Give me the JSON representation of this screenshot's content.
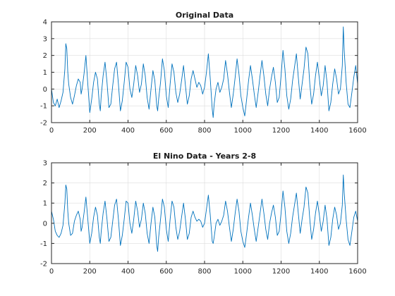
{
  "chart_data": [
    {
      "type": "line",
      "title": "Original Data",
      "xlabel": "",
      "ylabel": "",
      "xlim": [
        0,
        1600
      ],
      "ylim": [
        -2,
        4
      ],
      "xticks": [
        0,
        200,
        400,
        600,
        800,
        1000,
        1200,
        1400,
        1600
      ],
      "yticks": [
        -2,
        -1,
        0,
        1,
        2,
        3,
        4
      ],
      "grid": true,
      "color": "#0072bd",
      "series": [
        {
          "x": [
            0,
            10,
            20,
            30,
            40,
            50,
            60,
            70,
            75,
            80,
            85,
            90,
            100,
            110,
            120,
            130,
            140,
            150,
            155,
            160,
            170,
            180,
            190,
            200,
            210,
            220,
            230,
            240,
            250,
            255,
            260,
            270,
            280,
            290,
            300,
            310,
            320,
            330,
            340,
            350,
            360,
            370,
            380,
            390,
            400,
            410,
            420,
            430,
            440,
            450,
            460,
            470,
            480,
            490,
            500,
            510,
            520,
            530,
            540,
            550,
            555,
            560,
            570,
            580,
            590,
            600,
            610,
            620,
            630,
            640,
            650,
            660,
            670,
            680,
            690,
            700,
            710,
            720,
            730,
            740,
            750,
            760,
            770,
            780,
            790,
            800,
            810,
            820,
            830,
            840,
            845,
            850,
            860,
            870,
            880,
            890,
            900,
            910,
            920,
            930,
            940,
            950,
            960,
            970,
            980,
            990,
            1000,
            1010,
            1020,
            1030,
            1040,
            1050,
            1060,
            1070,
            1080,
            1090,
            1100,
            1110,
            1120,
            1130,
            1140,
            1150,
            1160,
            1170,
            1180,
            1190,
            1200,
            1210,
            1220,
            1230,
            1240,
            1250,
            1260,
            1270,
            1280,
            1290,
            1300,
            1310,
            1320,
            1330,
            1340,
            1350,
            1360,
            1370,
            1380,
            1390,
            1400,
            1410,
            1420,
            1430,
            1440,
            1450,
            1460,
            1470,
            1480,
            1490,
            1500,
            1510,
            1520,
            1525,
            1530,
            1540,
            1550,
            1560,
            1570,
            1580,
            1590,
            1600
          ],
          "y": [
            0.0,
            -0.8,
            -1.0,
            -0.6,
            -1.1,
            -0.7,
            -0.2,
            1.2,
            2.7,
            2.4,
            1.0,
            0.3,
            -0.5,
            -0.9,
            -0.4,
            0.2,
            0.6,
            0.4,
            -0.3,
            0.0,
            0.9,
            2.0,
            0.3,
            -1.4,
            -0.6,
            0.4,
            1.0,
            0.6,
            -0.9,
            -1.3,
            -0.4,
            0.8,
            1.6,
            0.4,
            -1.1,
            -0.9,
            0.2,
            1.2,
            1.6,
            0.3,
            -1.3,
            -0.7,
            0.4,
            1.6,
            1.3,
            0.0,
            -0.5,
            0.3,
            1.4,
            0.8,
            -0.2,
            0.3,
            1.5,
            0.8,
            -0.5,
            -1.2,
            0.0,
            1.1,
            0.5,
            -1.0,
            -1.3,
            -0.6,
            0.4,
            1.8,
            1.1,
            -0.4,
            -1.1,
            0.3,
            1.5,
            1.0,
            -0.2,
            -0.8,
            -0.3,
            0.5,
            1.4,
            0.2,
            -0.9,
            -0.4,
            0.6,
            1.1,
            0.6,
            0.1,
            0.4,
            0.2,
            -0.3,
            0.1,
            1.0,
            2.1,
            0.6,
            -1.2,
            -1.7,
            -0.9,
            0.0,
            0.4,
            -0.2,
            0.1,
            0.6,
            1.7,
            0.9,
            -0.2,
            -1.1,
            -0.3,
            0.7,
            1.8,
            0.9,
            -0.4,
            -1.1,
            -1.6,
            -0.6,
            0.5,
            1.4,
            0.6,
            -0.3,
            -1.1,
            -0.2,
            0.8,
            1.7,
            0.8,
            -0.3,
            -1.0,
            0.0,
            0.7,
            1.3,
            0.4,
            -0.8,
            -0.5,
            0.8,
            2.3,
            1.2,
            -0.4,
            -1.2,
            -0.6,
            0.5,
            1.3,
            2.1,
            0.7,
            -0.6,
            0.3,
            1.2,
            2.5,
            2.1,
            0.3,
            -0.9,
            -0.3,
            0.8,
            1.6,
            0.6,
            -0.4,
            0.2,
            1.4,
            0.4,
            -1.3,
            -0.8,
            0.3,
            1.2,
            0.6,
            -0.3,
            0.0,
            1.4,
            3.7,
            2.3,
            0.4,
            -0.9,
            -1.1,
            -0.2,
            0.7,
            1.4,
            0.3
          ]
        }
      ]
    },
    {
      "type": "line",
      "title": "El Nino Data - Years 2-8",
      "xlabel": "",
      "ylabel": "",
      "xlim": [
        0,
        1600
      ],
      "ylim": [
        -2,
        3
      ],
      "xticks": [
        0,
        200,
        400,
        600,
        800,
        1000,
        1200,
        1400,
        1600
      ],
      "yticks": [
        -2,
        -1,
        0,
        1,
        2,
        3
      ],
      "grid": true,
      "color": "#0072bd",
      "series": [
        {
          "x": [
            0,
            10,
            20,
            30,
            40,
            50,
            60,
            70,
            75,
            80,
            85,
            90,
            100,
            110,
            120,
            130,
            140,
            150,
            155,
            160,
            170,
            180,
            190,
            200,
            210,
            220,
            230,
            240,
            250,
            255,
            260,
            270,
            280,
            290,
            300,
            310,
            320,
            330,
            340,
            350,
            360,
            370,
            380,
            390,
            400,
            410,
            420,
            430,
            440,
            450,
            460,
            470,
            480,
            490,
            500,
            510,
            520,
            530,
            540,
            550,
            555,
            560,
            570,
            580,
            590,
            600,
            610,
            620,
            630,
            640,
            650,
            660,
            670,
            680,
            690,
            700,
            710,
            720,
            730,
            740,
            750,
            760,
            770,
            780,
            790,
            800,
            810,
            820,
            830,
            840,
            845,
            850,
            860,
            870,
            880,
            890,
            900,
            910,
            920,
            930,
            940,
            950,
            960,
            970,
            980,
            990,
            1000,
            1010,
            1020,
            1030,
            1040,
            1050,
            1060,
            1070,
            1080,
            1090,
            1100,
            1110,
            1120,
            1130,
            1140,
            1150,
            1160,
            1170,
            1180,
            1190,
            1200,
            1210,
            1220,
            1230,
            1240,
            1250,
            1260,
            1270,
            1280,
            1290,
            1300,
            1310,
            1320,
            1330,
            1340,
            1350,
            1360,
            1370,
            1380,
            1390,
            1400,
            1410,
            1420,
            1430,
            1440,
            1450,
            1460,
            1470,
            1480,
            1490,
            1500,
            1510,
            1520,
            1525,
            1530,
            1540,
            1550,
            1560,
            1570,
            1580,
            1590,
            1600
          ],
          "y": [
            0.6,
            0.2,
            -0.4,
            -0.6,
            -0.7,
            -0.5,
            -0.1,
            1.0,
            1.9,
            1.7,
            0.6,
            0.0,
            -0.6,
            -0.5,
            0.1,
            0.4,
            0.6,
            0.2,
            -0.4,
            -0.2,
            0.5,
            1.3,
            0.2,
            -1.0,
            -0.5,
            0.3,
            0.8,
            0.4,
            -0.7,
            -1.0,
            -0.4,
            0.5,
            1.1,
            0.2,
            -0.9,
            -0.7,
            0.1,
            0.9,
            1.2,
            0.2,
            -1.1,
            -0.6,
            0.2,
            1.1,
            1.0,
            0.0,
            -0.5,
            0.2,
            1.1,
            0.6,
            -0.2,
            0.2,
            1.0,
            0.5,
            -0.5,
            -1.0,
            0.0,
            0.8,
            0.3,
            -1.1,
            -1.4,
            -0.7,
            0.2,
            1.2,
            0.8,
            -0.3,
            -0.9,
            0.2,
            1.1,
            0.8,
            -0.2,
            -0.8,
            -0.4,
            0.3,
            1.0,
            0.2,
            -0.8,
            -0.5,
            0.3,
            0.6,
            0.3,
            0.1,
            0.2,
            0.1,
            -0.2,
            0.0,
            0.7,
            1.4,
            0.4,
            -0.9,
            -1.0,
            -0.7,
            0.0,
            0.2,
            -0.1,
            0.1,
            0.4,
            1.1,
            0.6,
            -0.2,
            -0.9,
            -0.3,
            0.5,
            1.2,
            0.6,
            -0.4,
            -0.9,
            -1.2,
            -0.5,
            0.3,
            1.0,
            0.4,
            -0.3,
            -0.9,
            -0.2,
            0.5,
            1.2,
            0.5,
            -0.3,
            -0.8,
            0.0,
            0.5,
            0.9,
            0.3,
            -0.6,
            -0.4,
            0.5,
            1.6,
            0.8,
            -0.4,
            -1.0,
            -0.5,
            0.3,
            0.9,
            1.5,
            0.5,
            -0.5,
            0.2,
            0.8,
            1.8,
            1.5,
            0.2,
            -0.8,
            -0.3,
            0.5,
            1.1,
            0.4,
            -0.4,
            0.1,
            0.9,
            0.2,
            -1.1,
            -0.7,
            0.2,
            0.8,
            0.4,
            -0.3,
            0.0,
            0.9,
            2.4,
            1.5,
            0.2,
            -0.8,
            -1.1,
            -0.4,
            0.3,
            0.6,
            0.1
          ]
        }
      ]
    }
  ]
}
